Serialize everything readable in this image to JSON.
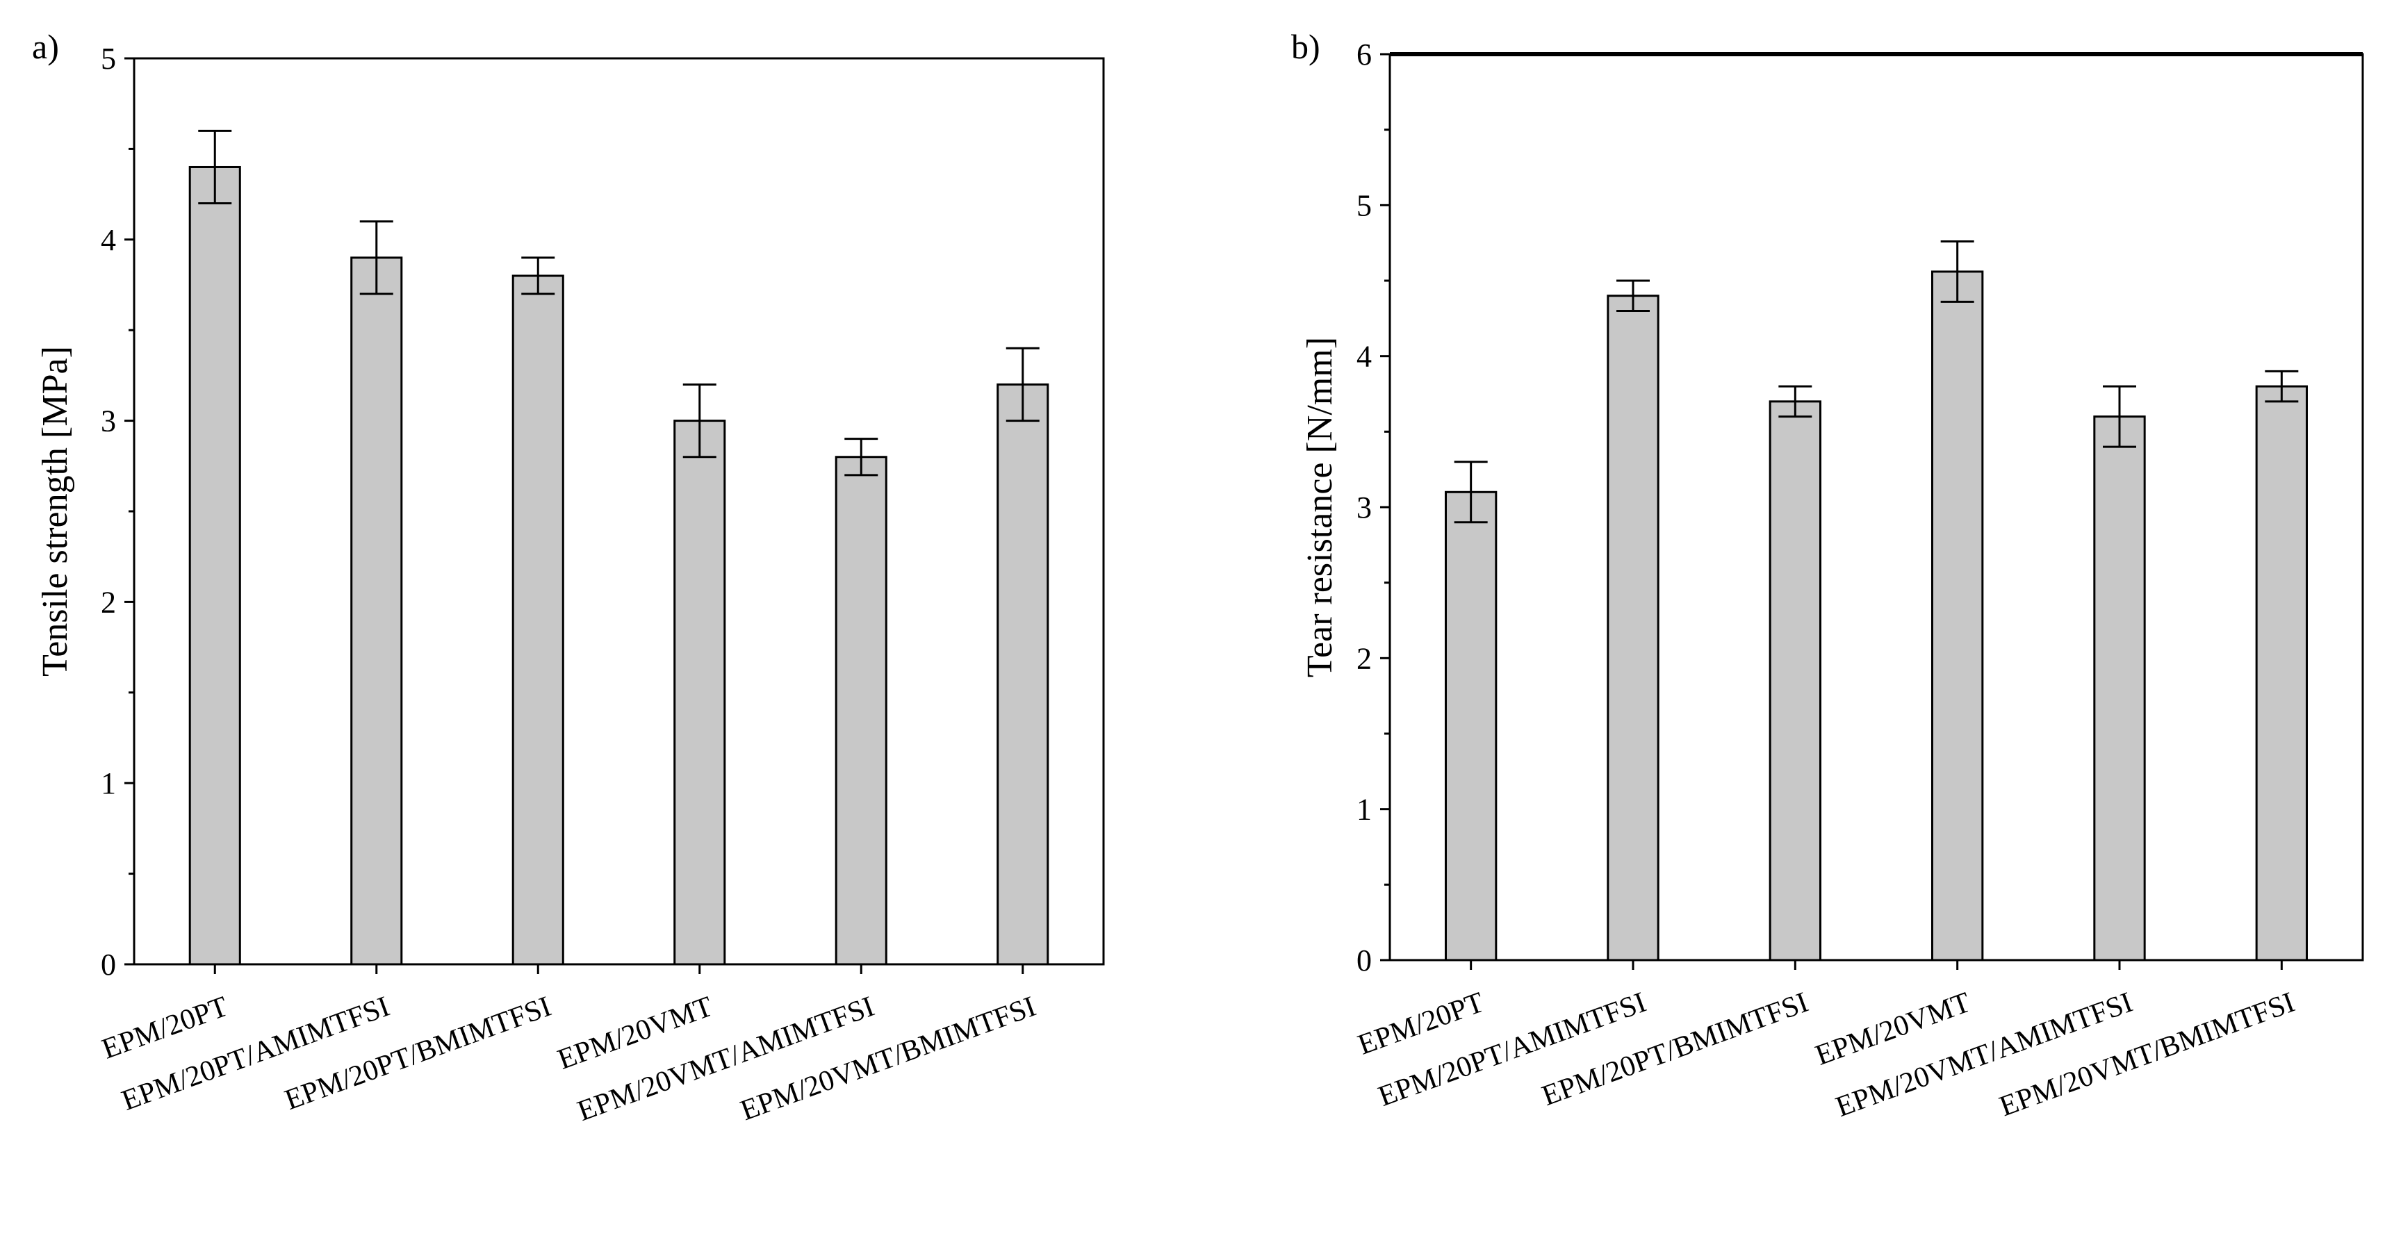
{
  "chart_data": [
    {
      "panel": "a)",
      "type": "bar",
      "title": "",
      "xlabel": "",
      "ylabel": "Tensile strength [MPa]",
      "ylim": [
        0,
        5
      ],
      "yticks": [
        "0",
        "1",
        "2",
        "3",
        "4",
        "5"
      ],
      "categories": [
        "EPM/20PT",
        "EPM/20PT/AMIMTFSI",
        "EPM/20PT/BMIMTFSI",
        "EPM/20VMT",
        "EPM/20VMT/AMIMTFSI",
        "EPM/20VMT/BMIMTFSI"
      ],
      "values": [
        4.4,
        3.9,
        3.8,
        3.0,
        2.8,
        3.2
      ],
      "errors": [
        0.2,
        0.2,
        0.1,
        0.2,
        0.1,
        0.2
      ],
      "grid": false,
      "bar_color": "#c8c8c8"
    },
    {
      "panel": "b)",
      "type": "bar",
      "title": "",
      "xlabel": "",
      "ylabel": "Tear resistance [N/mm]",
      "ylim": [
        0,
        6
      ],
      "yticks": [
        "0",
        "1",
        "2",
        "3",
        "4",
        "5",
        "6"
      ],
      "categories": [
        "EPM/20PT",
        "EPM/20PT/AMIMTFSI",
        "EPM/20PT/BMIMTFSI",
        "EPM/20VMT",
        "EPM/20VMT/AMIMTFSI",
        "EPM/20VMT/BMIMTFSI"
      ],
      "values": [
        3.1,
        4.4,
        3.7,
        4.56,
        3.6,
        3.8
      ],
      "errors": [
        0.2,
        0.1,
        0.1,
        0.2,
        0.2,
        0.1
      ],
      "grid": false,
      "bar_color": "#c8c8c8"
    }
  ]
}
